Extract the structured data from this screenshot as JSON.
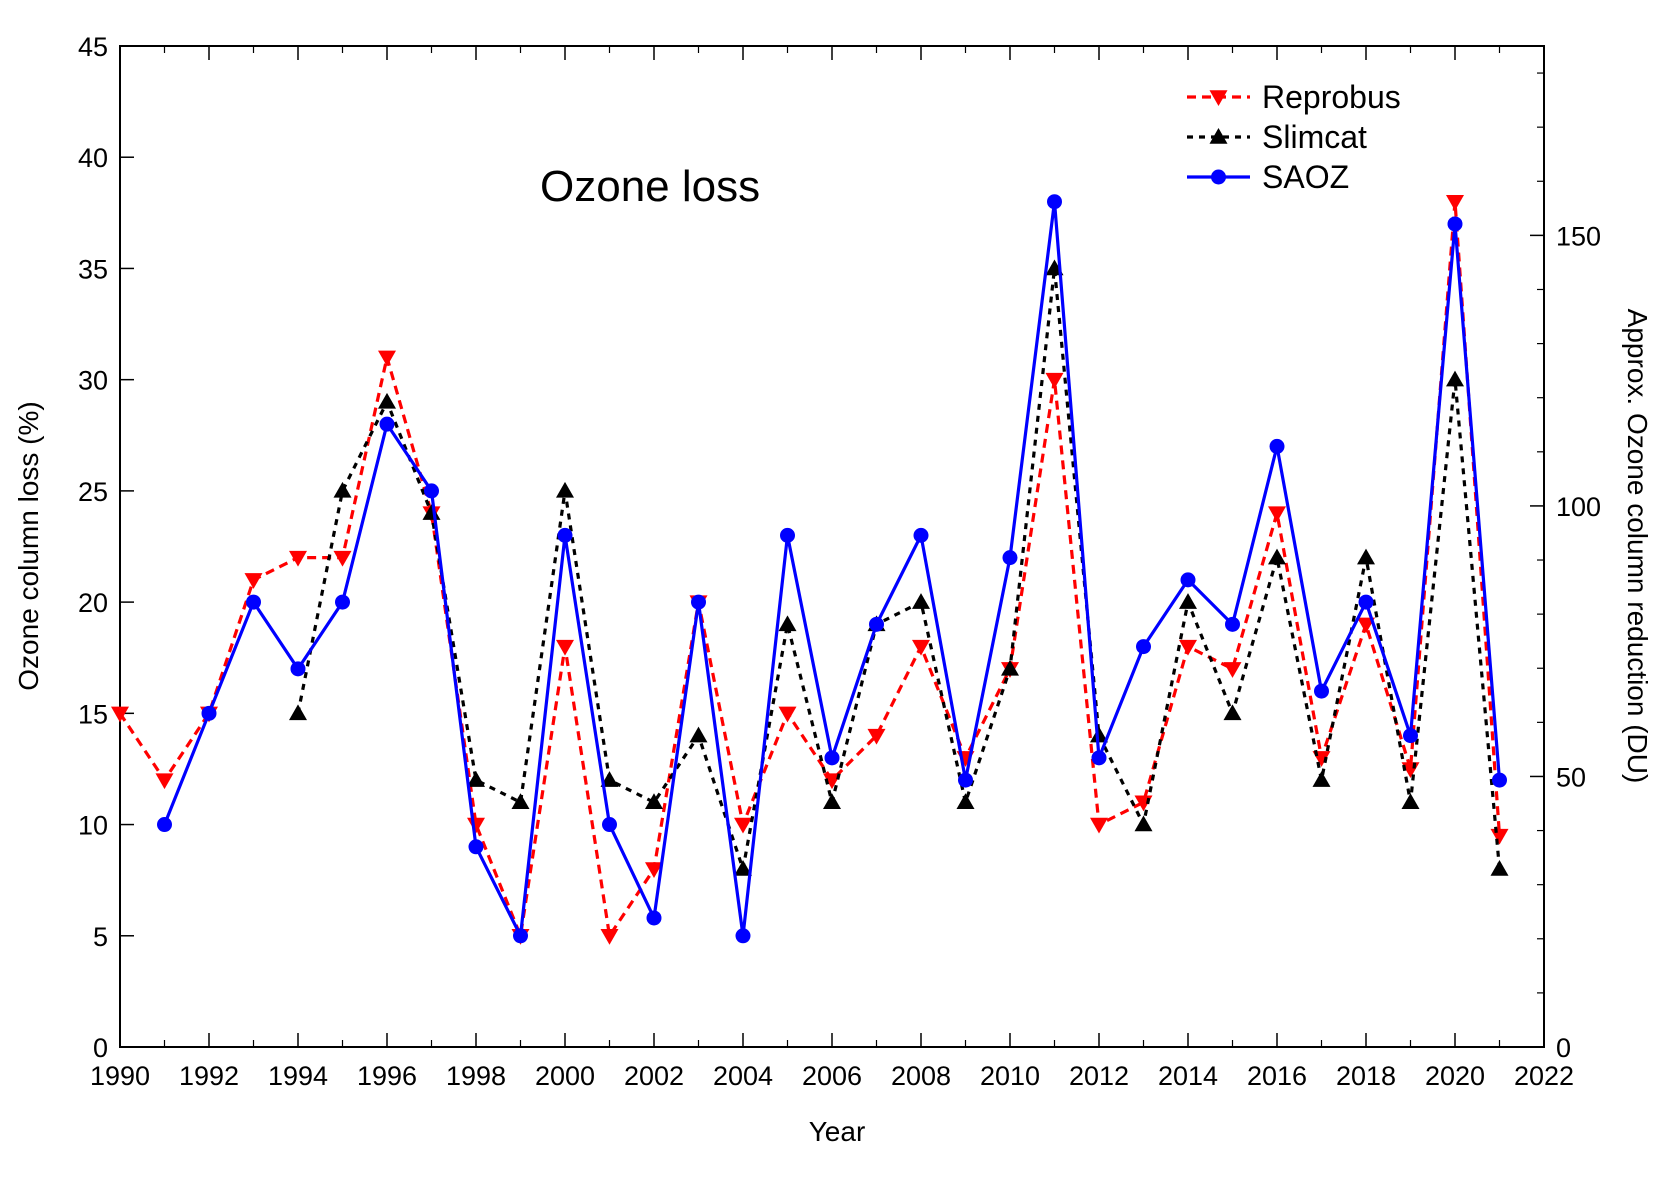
{
  "chart_data": {
    "type": "line",
    "title": "Ozone loss",
    "xlabel": "Year",
    "ylabel": "Ozone column loss (%)",
    "y2label": "Approx. Ozone column reduction (DU)",
    "xlim": [
      1990,
      2022
    ],
    "ylim": [
      0,
      45
    ],
    "y2lim": [
      0,
      185
    ],
    "xticks": [
      "1990",
      "1992",
      "1994",
      "1996",
      "1998",
      "2000",
      "2002",
      "2004",
      "2006",
      "2008",
      "2010",
      "2012",
      "2014",
      "2016",
      "2018",
      "2020",
      "2022"
    ],
    "yticks": [
      "0",
      "5",
      "10",
      "15",
      "20",
      "25",
      "30",
      "35",
      "40",
      "45"
    ],
    "y2ticks": [
      "0",
      "50",
      "100",
      "150"
    ],
    "legend_position": "top-right",
    "grid": false,
    "series": [
      {
        "name": "Reprobus",
        "color": "#ff0000",
        "line": "dashed",
        "marker": "triangle-down",
        "x": [
          1990,
          1991,
          1992,
          1993,
          1994,
          1995,
          1996,
          1997,
          1998,
          1999,
          2000,
          2001,
          2002,
          2003,
          2004,
          2005,
          2006,
          2007,
          2008,
          2009,
          2010,
          2011,
          2012,
          2013,
          2014,
          2015,
          2016,
          2017,
          2018,
          2019,
          2020,
          2021
        ],
        "y": [
          15,
          12,
          15,
          21,
          22,
          22,
          31,
          24,
          10,
          5,
          18,
          5,
          8,
          20,
          10,
          15,
          12,
          14,
          18,
          13,
          17,
          30,
          10,
          11,
          18,
          17,
          24,
          13,
          19,
          12.5,
          38,
          9.5
        ]
      },
      {
        "name": "Slimcat",
        "color": "#000000",
        "line": "dotted",
        "marker": "triangle-up",
        "x": [
          1994,
          1995,
          1996,
          1997,
          1998,
          1999,
          2000,
          2001,
          2002,
          2003,
          2004,
          2005,
          2006,
          2007,
          2008,
          2009,
          2010,
          2011,
          2012,
          2013,
          2014,
          2015,
          2016,
          2017,
          2018,
          2019,
          2020,
          2021
        ],
        "y": [
          15,
          25,
          29,
          24,
          12,
          11,
          25,
          12,
          11,
          14,
          8,
          19,
          11,
          19,
          20,
          11,
          17,
          35,
          14,
          10,
          20,
          15,
          22,
          12,
          22,
          11,
          30,
          8
        ]
      },
      {
        "name": "SAOZ",
        "color": "#0000ff",
        "line": "solid",
        "marker": "circle",
        "x": [
          1991,
          1992,
          1993,
          1994,
          1995,
          1996,
          1997,
          1998,
          1999,
          2000,
          2001,
          2002,
          2003,
          2004,
          2005,
          2006,
          2007,
          2008,
          2009,
          2010,
          2011,
          2012,
          2013,
          2014,
          2015,
          2016,
          2017,
          2018,
          2019,
          2020,
          2021
        ],
        "y": [
          10,
          15,
          20,
          17,
          20,
          28,
          25,
          9,
          5,
          23,
          10,
          5.8,
          20,
          5,
          23,
          13,
          19,
          23,
          12,
          22,
          38,
          13,
          18,
          21,
          19,
          27,
          16,
          20,
          14,
          37,
          12
        ]
      }
    ]
  }
}
